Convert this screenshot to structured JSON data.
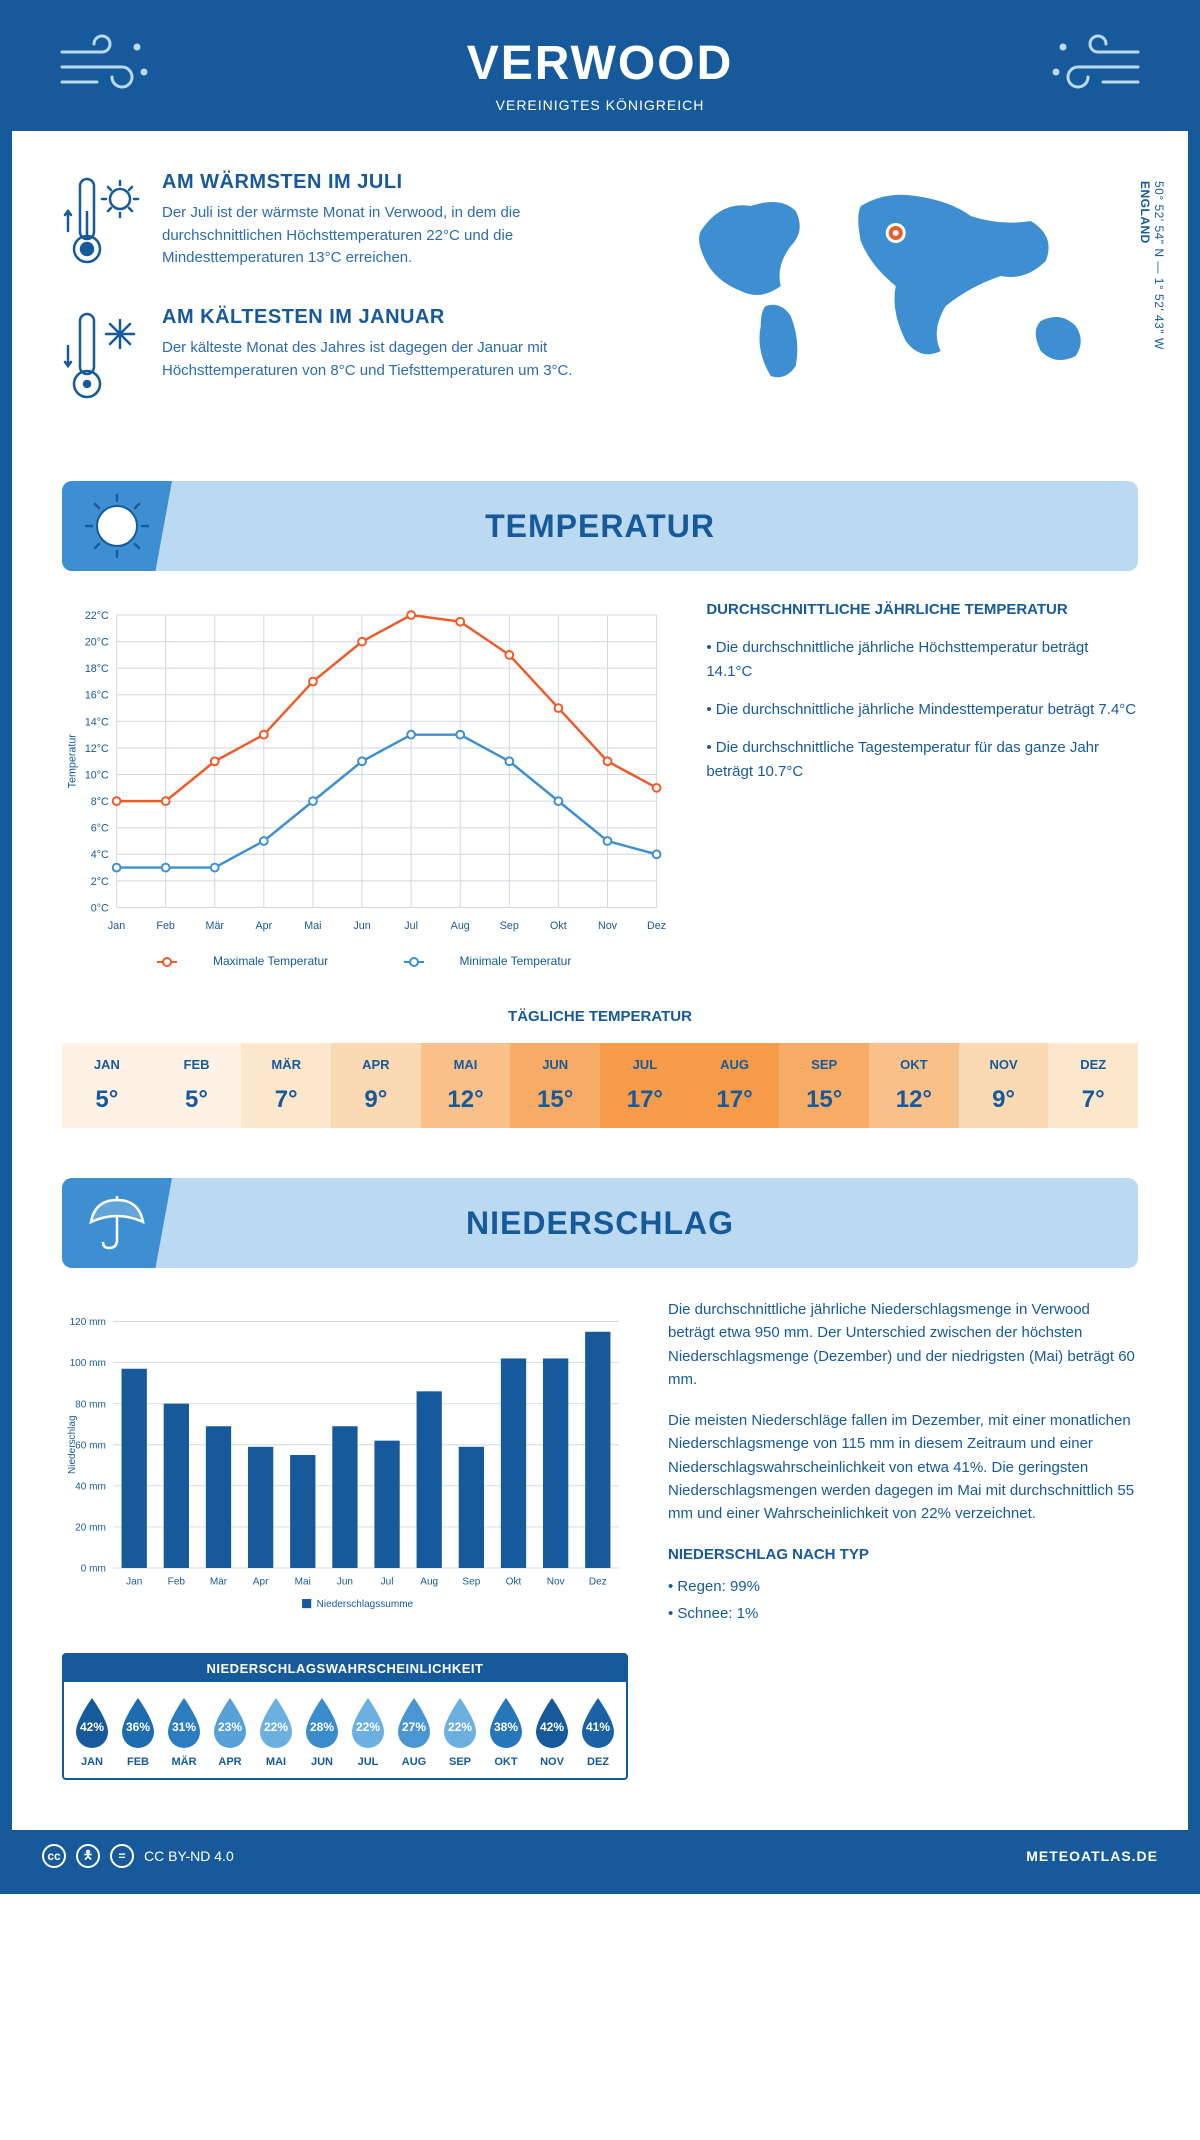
{
  "header": {
    "city": "VERWOOD",
    "country": "VEREINIGTES KÖNIGREICH"
  },
  "coords": {
    "lat": "50° 52' 54\" N — 1° 52' 43\" W",
    "region": "ENGLAND"
  },
  "intro": {
    "warm": {
      "title": "AM WÄRMSTEN IM JULI",
      "text": "Der Juli ist der wärmste Monat in Verwood, in dem die durchschnittlichen Höchsttemperaturen 22°C und die Mindesttemperaturen 13°C erreichen."
    },
    "cold": {
      "title": "AM KÄLTESTEN IM JANUAR",
      "text": "Der kälteste Monat des Jahres ist dagegen der Januar mit Höchsttemperaturen von 8°C und Tiefsttemperaturen um 3°C."
    }
  },
  "sections": {
    "temperature": "TEMPERATUR",
    "precipitation": "NIEDERSCHLAG"
  },
  "tempChart": {
    "months": [
      "Jan",
      "Feb",
      "Mär",
      "Apr",
      "Mai",
      "Jun",
      "Jul",
      "Aug",
      "Sep",
      "Okt",
      "Nov",
      "Dez"
    ],
    "max": [
      8,
      8,
      11,
      13,
      17,
      20,
      22,
      21.5,
      19,
      15,
      11,
      9
    ],
    "min": [
      3,
      3,
      3,
      5,
      8,
      11,
      13,
      13,
      11,
      8,
      5,
      4
    ],
    "maxColor": "#f05a28",
    "minColor": "#3d8fd1",
    "yLabel": "Temperatur",
    "ylim": [
      0,
      22
    ],
    "yStep": 2,
    "gridColor": "#d0d8e0",
    "legend": {
      "max": "Maximale Temperatur",
      "min": "Minimale Temperatur"
    }
  },
  "tempNotes": {
    "title": "DURCHSCHNITTLICHE JÄHRLICHE TEMPERATUR",
    "lines": [
      "• Die durchschnittliche jährliche Höchsttemperatur beträgt 14.1°C",
      "• Die durchschnittliche jährliche Mindesttemperatur beträgt 7.4°C",
      "• Die durchschnittliche Tagestemperatur für das ganze Jahr beträgt 10.7°C"
    ]
  },
  "dailyTemp": {
    "title": "TÄGLICHE TEMPERATUR",
    "months": [
      "JAN",
      "FEB",
      "MÄR",
      "APR",
      "MAI",
      "JUN",
      "JUL",
      "AUG",
      "SEP",
      "OKT",
      "NOV",
      "DEZ"
    ],
    "values": [
      "5°",
      "5°",
      "7°",
      "9°",
      "12°",
      "15°",
      "17°",
      "17°",
      "15°",
      "12°",
      "9°",
      "7°"
    ],
    "colors": [
      "#fdf2e5",
      "#fdf2e5",
      "#fce6cc",
      "#fbd9b3",
      "#f9c089",
      "#f7ab65",
      "#f59b4a",
      "#f59b4a",
      "#f7ab65",
      "#f9c089",
      "#fbd9b3",
      "#fce6cc"
    ]
  },
  "precipChart": {
    "months": [
      "Jan",
      "Feb",
      "Mär",
      "Apr",
      "Mai",
      "Jun",
      "Jul",
      "Aug",
      "Sep",
      "Okt",
      "Nov",
      "Dez"
    ],
    "values": [
      97,
      80,
      69,
      59,
      55,
      69,
      62,
      86,
      59,
      102,
      102,
      115
    ],
    "barColor": "#165a9c",
    "yLabel": "Niederschlag",
    "ylim": [
      0,
      120
    ],
    "yStep": 20,
    "gridColor": "#d0d8e0",
    "legend": "Niederschlagssumme"
  },
  "precipText": {
    "p1": "Die durchschnittliche jährliche Niederschlagsmenge in Verwood beträgt etwa 950 mm. Der Unterschied zwischen der höchsten Niederschlagsmenge (Dezember) und der niedrigsten (Mai) beträgt 60 mm.",
    "p2": "Die meisten Niederschläge fallen im Dezember, mit einer monatlichen Niederschlagsmenge von 115 mm in diesem Zeitraum und einer Niederschlagswahrscheinlichkeit von etwa 41%. Die geringsten Niederschlagsmengen werden dagegen im Mai mit durchschnittlich 55 mm und einer Wahrscheinlichkeit von 22% verzeichnet.",
    "typeTitle": "NIEDERSCHLAG NACH TYP",
    "typeLines": [
      "• Regen: 99%",
      "• Schnee: 1%"
    ]
  },
  "precipProb": {
    "title": "NIEDERSCHLAGSWAHRSCHEINLICHKEIT",
    "months": [
      "JAN",
      "FEB",
      "MÄR",
      "APR",
      "MAI",
      "JUN",
      "JUL",
      "AUG",
      "SEP",
      "OKT",
      "NOV",
      "DEZ"
    ],
    "values": [
      "42%",
      "36%",
      "31%",
      "23%",
      "22%",
      "28%",
      "22%",
      "27%",
      "22%",
      "38%",
      "42%",
      "41%"
    ],
    "colors": [
      "#165a9c",
      "#1f6bb0",
      "#2b7cc0",
      "#57a0d8",
      "#6bb0e0",
      "#3a8ccd",
      "#6bb0e0",
      "#4a96d2",
      "#6bb0e0",
      "#2676ba",
      "#165a9c",
      "#1a62a4"
    ]
  },
  "footer": {
    "license": "CC BY-ND 4.0",
    "site": "METEOATLAS.DE"
  },
  "colors": {
    "primary": "#165a9c",
    "lightBlue": "#bbd9f0",
    "midBlue": "#3d8fd1"
  }
}
